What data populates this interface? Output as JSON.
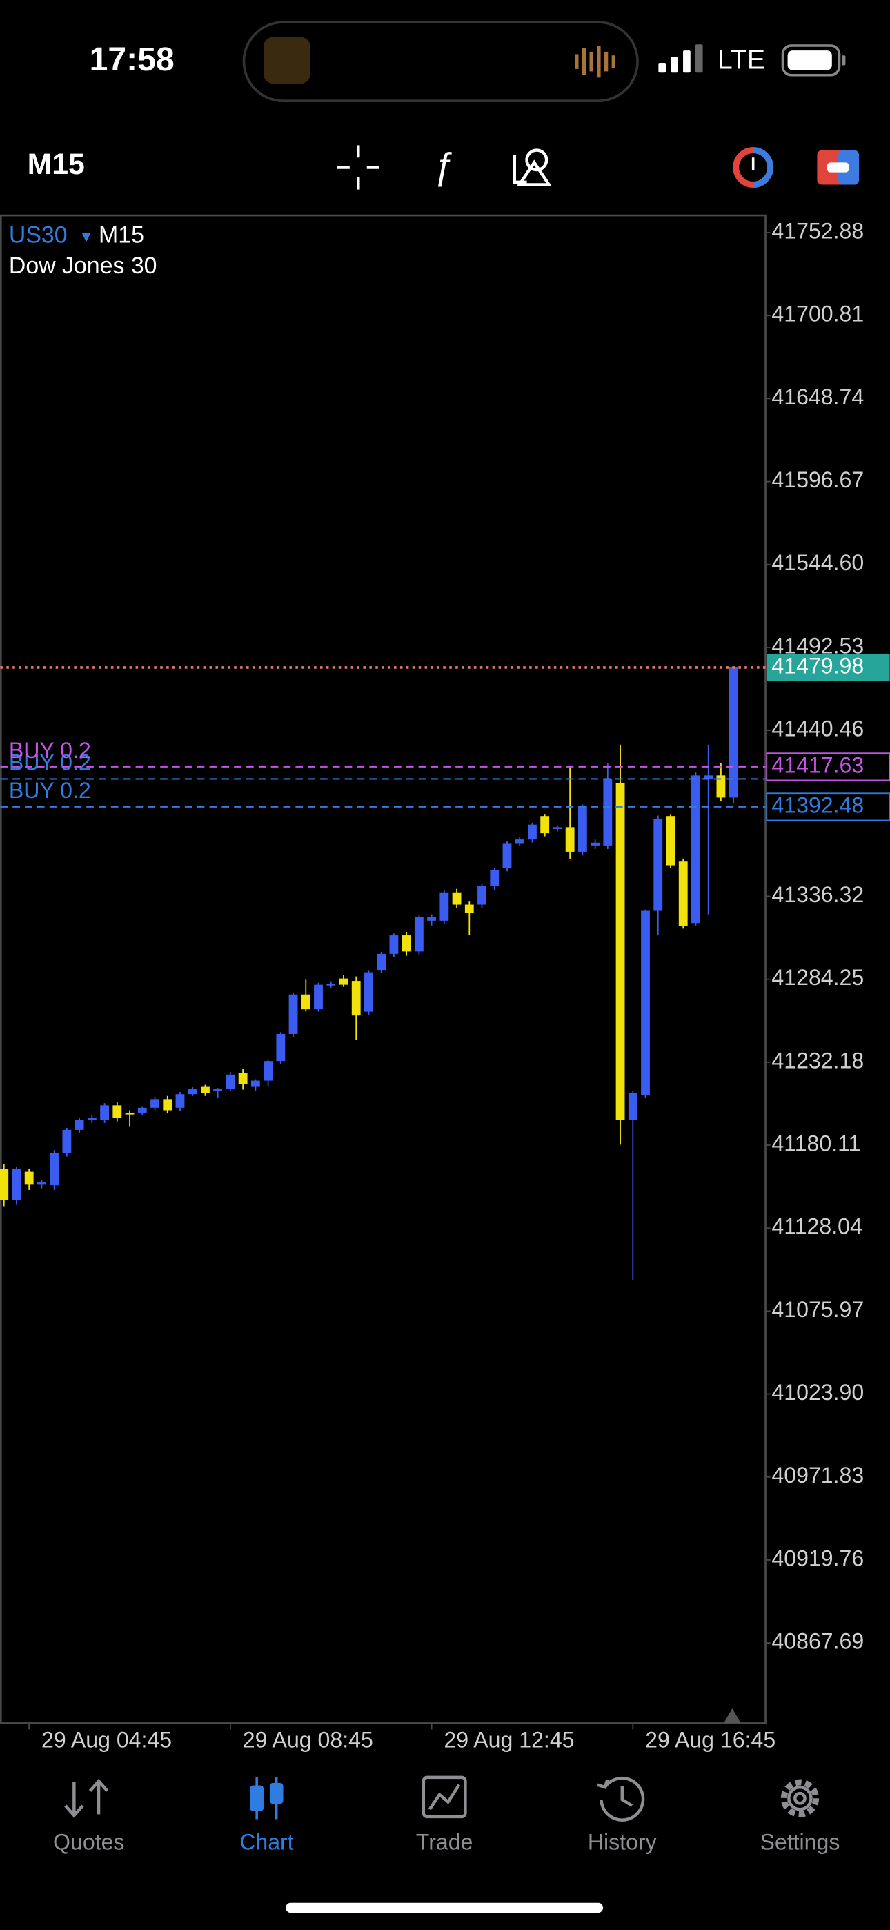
{
  "status_bar": {
    "time": "17:58",
    "network": "LTE"
  },
  "toolbar": {
    "timeframe": "M15"
  },
  "chart_data": {
    "type": "candlestick",
    "symbol": "US30",
    "timeframe": "M15",
    "description": "Dow Jones 30",
    "up_color": "#3b5cf0",
    "down_color": "#f2e20c",
    "categories": [
      null,
      null,
      "29 Aug 04:45",
      null,
      null,
      null,
      null,
      null,
      null,
      null,
      null,
      null,
      null,
      null,
      null,
      null,
      null,
      null,
      "29 Aug 08:45",
      null,
      null,
      null,
      null,
      null,
      null,
      null,
      null,
      null,
      null,
      null,
      null,
      null,
      null,
      null,
      "29 Aug 12:45",
      null,
      null,
      null,
      null,
      null,
      null,
      null,
      null,
      null,
      null,
      null,
      null,
      null,
      null,
      null,
      "29 Aug 16:45",
      null,
      null,
      null,
      null,
      null,
      null,
      null,
      null
    ],
    "open": [
      41165.0,
      41145.6,
      41163.4,
      41155.7,
      41154.9,
      41175.0,
      41189.7,
      41195.9,
      41195.9,
      41205.1,
      41200.5,
      41200.5,
      41203.6,
      41209.0,
      41203.6,
      41212.1,
      41216.7,
      41214.0,
      41215.2,
      41225.2,
      41216.7,
      41220.6,
      41232.9,
      41249.9,
      41274.7,
      41265.4,
      41280.8,
      41284.7,
      41283.2,
      41263.9,
      41290.1,
      41300.2,
      41311.8,
      41301.7,
      41321.0,
      41321.0,
      41338.8,
      41331.1,
      41331.1,
      41342.7,
      41354.2,
      41369.7,
      41372.0,
      41386.7,
      41379.0,
      41379.7,
      41364.3,
      41368.2,
      41368.2,
      41407.6,
      41195.9,
      41211.3,
      41327.2,
      41386.7,
      41358.1,
      41319.5,
      41410.0,
      41412.2,
      41398.3
    ],
    "high": [
      41168.0,
      41166.5,
      41165.0,
      41158.0,
      41177.0,
      41191.0,
      41197.0,
      41199.0,
      41206.5,
      41207.0,
      41202.0,
      41204.5,
      41210.5,
      41211.0,
      41213.5,
      41216.5,
      41218.0,
      41216.0,
      41226.0,
      41228.0,
      41221.5,
      41234.0,
      41251.0,
      41276.0,
      41284.0,
      41282.0,
      41283.0,
      41287.0,
      41286.0,
      41290.0,
      41301.5,
      41313.0,
      41314.0,
      41324.5,
      41325.0,
      41340.0,
      41341.0,
      41333.0,
      41344.0,
      41354.0,
      41371.0,
      41373.5,
      41382.5,
      41388.0,
      41381.0,
      41417.6,
      41394.0,
      41372.0,
      41420.0,
      41431.5,
      41214.0,
      41328.0,
      41387.0,
      41388.0,
      41360.0,
      41414.0,
      41431.5,
      41420.0,
      41479.98
    ],
    "low": [
      41141.8,
      41143.0,
      41152.0,
      41153.0,
      41152.0,
      41173.0,
      41188.0,
      41194.0,
      41194.0,
      41195.0,
      41192.0,
      41199.0,
      41202.0,
      41200.0,
      41201.5,
      41211.0,
      41211.0,
      41210.0,
      41214.0,
      41215.0,
      41214.0,
      41217.0,
      41231.0,
      41248.0,
      41264.0,
      41264.0,
      41279.0,
      41279.5,
      41246.0,
      41262.0,
      41288.0,
      41298.0,
      41299.0,
      41300.0,
      41318.0,
      41319.0,
      41329.0,
      41312.0,
      41329.0,
      41340.0,
      41352.0,
      41368.0,
      41370.0,
      41374.0,
      41377.0,
      41360.0,
      41362.0,
      41366.0,
      41366.0,
      41180.4,
      41095.4,
      41210.0,
      41311.8,
      41354.0,
      41316.0,
      41318.0,
      41325.0,
      41396.0,
      41395.0
    ],
    "close": [
      41145.6,
      41165.0,
      41155.7,
      41157.0,
      41175.0,
      41189.7,
      41195.9,
      41197.4,
      41205.1,
      41197.4,
      41199.7,
      41203.6,
      41209.0,
      41202.0,
      41212.1,
      41215.2,
      41212.9,
      41215.2,
      41224.4,
      41218.3,
      41220.6,
      41232.9,
      41249.9,
      41274.7,
      41265.4,
      41280.8,
      41281.5,
      41280.8,
      41261.5,
      41288.6,
      41300.2,
      41311.8,
      41301.7,
      41323.3,
      41323.3,
      41338.8,
      41331.1,
      41325.7,
      41342.7,
      41352.7,
      41369.7,
      41372.0,
      41381.3,
      41375.9,
      41379.7,
      41364.3,
      41392.9,
      41370.0,
      41409.9,
      41195.9,
      41212.9,
      41327.2,
      41385.1,
      41355.8,
      41317.9,
      41412.2,
      41412.2,
      41398.3,
      41479.98
    ],
    "ylim": [
      40817.3,
      41763.7
    ],
    "yticks": [
      41752.88,
      41700.81,
      41648.74,
      41596.67,
      {
        "value": 41544.6,
        "label": "41544.60"
      },
      41492.53,
      41440.46,
      41336.32,
      41284.25,
      41232.18,
      41180.11,
      41128.04,
      41075.97,
      {
        "value": 41023.9,
        "label": "41023.90"
      },
      40971.83,
      40919.76,
      40867.69
    ],
    "ask_line": {
      "value": 41479.98,
      "color": "#e27b68",
      "tag_color": "#26a69a"
    },
    "orders": [
      {
        "label": "BUY 0.2",
        "value": 41410.0,
        "color": "#2f7de1",
        "tag": false
      },
      {
        "label": "BUY 0.2",
        "value": 41392.48,
        "color": "#2f7de1",
        "tag": true
      },
      {
        "label": "BUY 0.2",
        "value": 41417.63,
        "color": "#c455e6",
        "tag": true
      }
    ]
  },
  "tab_bar": {
    "tabs": [
      "Quotes",
      "Chart",
      "Trade",
      "History",
      "Settings"
    ],
    "active": 1,
    "active_color": "#2f7de1",
    "color": "#8e8e93"
  }
}
